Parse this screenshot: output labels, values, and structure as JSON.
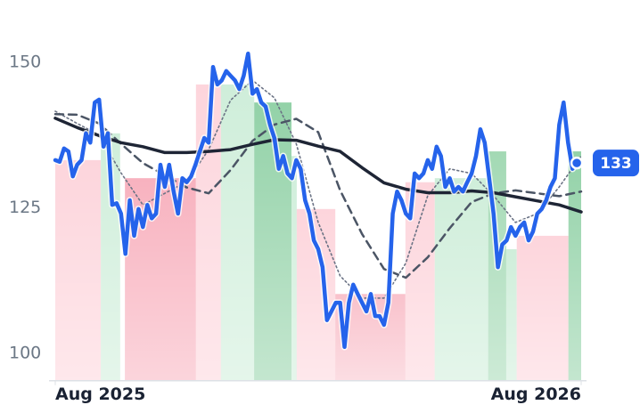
{
  "chart_data": {
    "type": "line",
    "x": [
      0,
      0.1,
      0.2,
      0.3,
      0.4,
      0.5,
      0.6,
      0.7,
      0.8,
      0.9,
      1,
      1.1,
      1.2,
      1.3,
      1.4,
      1.5,
      1.6,
      1.7,
      1.8,
      1.9,
      2,
      2.1,
      2.2,
      2.3,
      2.4,
      2.5,
      2.6,
      2.7,
      2.8,
      2.9,
      3,
      3.1,
      3.2,
      3.3,
      3.4,
      3.5,
      3.6,
      3.7,
      3.8,
      3.9,
      4,
      4.1,
      4.2,
      4.3,
      4.4,
      4.5,
      4.6,
      4.7,
      4.8,
      4.9,
      5,
      5.1,
      5.2,
      5.3,
      5.4,
      5.5,
      5.6,
      5.7,
      5.8,
      5.9,
      6,
      6.1,
      6.2,
      6.3,
      6.4,
      6.5,
      6.6,
      6.7,
      6.8,
      6.9,
      7,
      7.1,
      7.2,
      7.3,
      7.4,
      7.5,
      7.6,
      7.7,
      7.8,
      7.9,
      8,
      8.1,
      8.2,
      8.3,
      8.4,
      8.5,
      8.6,
      8.7,
      8.8,
      8.9,
      9,
      9.1,
      9.2,
      9.3,
      9.4,
      9.5,
      9.6,
      9.7,
      9.8,
      9.9,
      10,
      10.1,
      10.2,
      10.3,
      10.4,
      10.5,
      10.6,
      10.7,
      10.8,
      10.9,
      11,
      11.1,
      11.2,
      11.3,
      11.4,
      11.5,
      11.6,
      11.7,
      11.8,
      11.9
    ],
    "series": [
      {
        "color": "#2563eb",
        "width": 4.5,
        "dash": "none",
        "values": [
          133.2,
          132.9,
          135.2,
          134.7,
          130.4,
          132.4,
          133.2,
          137.8,
          136.2,
          143.1,
          143.6,
          135.5,
          137.8,
          125.5,
          125.8,
          124.0,
          117.1,
          126.3,
          120.2,
          124.8,
          121.7,
          125.5,
          123.2,
          124.0,
          132.4,
          128.6,
          132.4,
          127.8,
          124.0,
          130.1,
          129.4,
          130.4,
          132.4,
          134.7,
          137.0,
          136.2,
          149.2,
          146.2,
          146.9,
          148.5,
          147.7,
          146.9,
          145.4,
          147.7,
          151.5,
          144.6,
          145.4,
          143.1,
          142.4,
          139.3,
          137.0,
          131.7,
          133.9,
          130.9,
          130.1,
          133.2,
          131.7,
          126.3,
          124.0,
          119.4,
          117.9,
          114.8,
          105.7,
          107.2,
          108.7,
          108.7,
          101.1,
          108.7,
          111.8,
          110.2,
          108.7,
          107.2,
          110.2,
          106.4,
          106.4,
          104.9,
          108.7,
          124.0,
          127.8,
          126.3,
          124.0,
          123.2,
          130.9,
          130.1,
          130.9,
          133.2,
          131.7,
          135.5,
          133.9,
          128.6,
          130.1,
          127.8,
          128.6,
          127.8,
          129.4,
          130.9,
          133.9,
          138.5,
          136.2,
          130.1,
          124.0,
          114.8,
          118.7,
          119.4,
          121.7,
          120.2,
          121.7,
          122.5,
          119.4,
          120.9,
          124.0,
          124.8,
          126.3,
          128.6,
          130.1,
          139.3,
          143.1,
          136.2,
          131.7,
          132.7
        ]
      },
      {
        "color": "#1e2535",
        "width": 3.5,
        "dash": "none",
        "x": [
          0,
          0.5,
          1,
          1.5,
          2,
          2.5,
          3,
          3.5,
          4,
          4.5,
          5,
          5.5,
          6,
          6.5,
          7,
          7.5,
          8,
          8.5,
          9,
          9.5,
          10,
          10.5,
          11,
          11.5,
          12
        ],
        "values": [
          140.4,
          138.8,
          137.4,
          136.2,
          135.5,
          134.5,
          134.5,
          134.7,
          135.0,
          135.9,
          136.7,
          136.6,
          135.6,
          134.7,
          131.9,
          129.3,
          128.2,
          127.6,
          127.6,
          127.9,
          127.6,
          126.9,
          126.2,
          125.5,
          124.3
        ]
      },
      {
        "color": "#4b5565",
        "width": 2.5,
        "dash": "9 6",
        "x": [
          0,
          0.5,
          1,
          1.5,
          2,
          2.5,
          3,
          3.5,
          4,
          4.5,
          5,
          5.5,
          6,
          6.5,
          7,
          7.5,
          8,
          8.5,
          9,
          9.5,
          10,
          10.5,
          11,
          11.5,
          12
        ],
        "values": [
          141.1,
          141.0,
          139.5,
          136.0,
          132.7,
          130.6,
          128.5,
          127.5,
          131.5,
          136.5,
          139.3,
          140.3,
          138.0,
          128.0,
          120.5,
          114.5,
          113.0,
          116.5,
          121.5,
          126.0,
          127.5,
          128.0,
          127.5,
          127.0,
          127.8
        ]
      },
      {
        "color": "#6b7385",
        "width": 1.6,
        "dash": "2 3",
        "x": [
          0,
          0.5,
          1,
          1.5,
          2,
          2.5,
          3,
          3.5,
          4,
          4.5,
          5,
          5.5,
          6,
          6.5,
          7,
          7.5,
          8,
          8.5,
          9,
          9.5,
          10,
          10.5,
          11,
          11.5,
          12
        ],
        "values": [
          141.6,
          139.5,
          137.5,
          131.0,
          125.5,
          127.5,
          129.5,
          135.0,
          143.5,
          146.9,
          143.9,
          136.0,
          122.5,
          113.3,
          109.5,
          109.5,
          115.5,
          127.1,
          131.7,
          130.9,
          127.1,
          122.5,
          124.0,
          128.6,
          133.9
        ]
      }
    ],
    "bands": [
      {
        "x": [
          0,
          1.04
        ],
        "top": 133.2,
        "color": "#fdd5dc"
      },
      {
        "x": [
          1.04,
          1.48
        ],
        "top": 137.8,
        "color": "#cfeeda"
      },
      {
        "x": [
          1.59,
          3.21
        ],
        "top": 130.1,
        "color": "#f8b2bf"
      },
      {
        "x": [
          3.21,
          3.78
        ],
        "top": 146.2,
        "color": "#fdd5dc"
      },
      {
        "x": [
          3.78,
          4.54
        ],
        "top": 146.2,
        "color": "#cfeeda"
      },
      {
        "x": [
          4.54,
          5.39
        ],
        "top": 143.1,
        "color": "#93d2a8"
      },
      {
        "x": [
          5.39,
          5.51
        ],
        "top": 133.9,
        "color": "#cfeeda"
      },
      {
        "x": [
          5.51,
          6.39
        ],
        "top": 124.8,
        "color": "#fdd5dc"
      },
      {
        "x": [
          6.39,
          7.99
        ],
        "top": 110.2,
        "color": "#f9c2cc"
      },
      {
        "x": [
          7.99,
          8.66
        ],
        "top": 129.4,
        "color": "#fdd5dc"
      },
      {
        "x": [
          8.66,
          9.88
        ],
        "top": 130.1,
        "color": "#cfeeda"
      },
      {
        "x": [
          9.88,
          10.29
        ],
        "top": 134.7,
        "color": "#a3d9b4"
      },
      {
        "x": [
          10.29,
          10.53
        ],
        "top": 117.9,
        "color": "#cfeeda"
      },
      {
        "x": [
          10.53,
          11.71
        ],
        "top": 120.2,
        "color": "#fdd5dc"
      },
      {
        "x": [
          11.71,
          12
        ],
        "top": 134.7,
        "color": "#93d2a8"
      }
    ],
    "annotations": [
      {
        "x": 11.9,
        "y": 132.7,
        "label": "133"
      }
    ],
    "xlim": [
      0,
      12
    ],
    "xticks": [
      {
        "value": 0,
        "label": "Aug 2025"
      },
      {
        "value": 12,
        "label": "Aug 2026"
      }
    ],
    "ylim": [
      95,
      158
    ],
    "yticks": [
      100,
      125,
      150
    ],
    "grid": false
  }
}
